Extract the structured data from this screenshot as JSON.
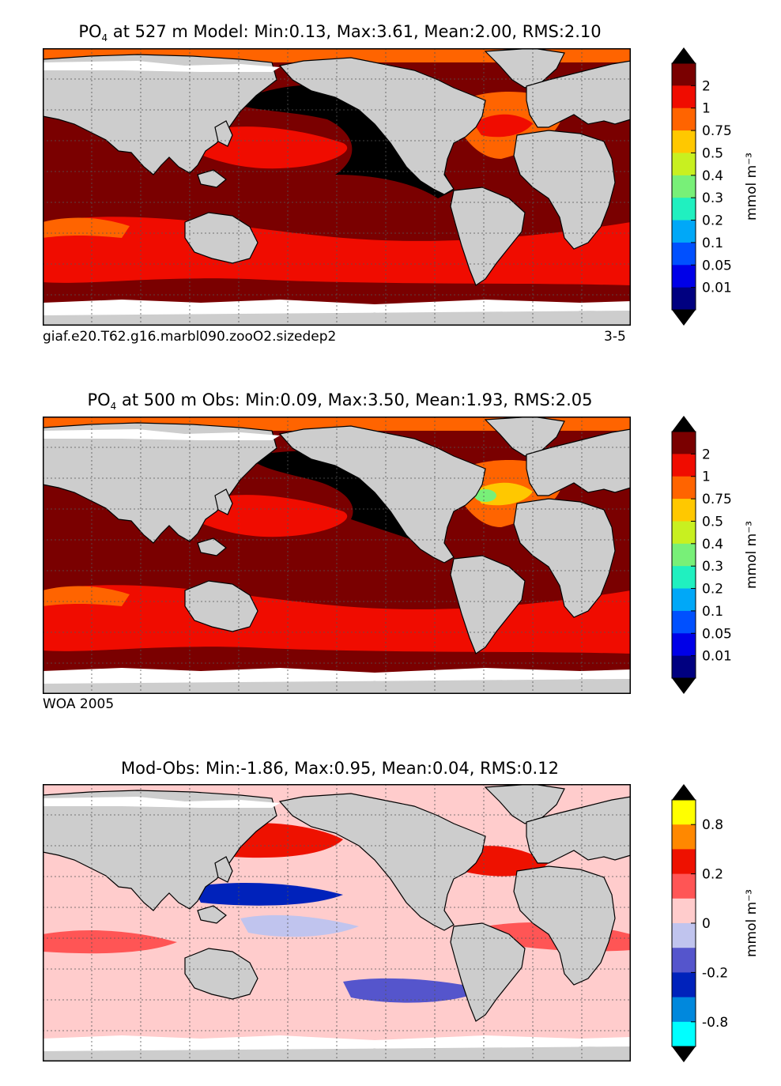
{
  "panels": [
    {
      "title_prefix": "PO",
      "title_sub": "4",
      "title_rest": " at 527 m Model: Min:0.13, Max:3.61, Mean:2.00, RMS:2.10",
      "caption_left": "giaf.e20.T62.g16.marbl090.zooO2.sizedep2",
      "caption_right": "3-5",
      "colorbar": {
        "label": "mmol m⁻³",
        "ticks": [
          "2",
          "1",
          "0.75",
          "0.5",
          "0.4",
          "0.3",
          "0.2",
          "0.1",
          "0.05",
          "0.01"
        ],
        "colors": [
          "#7a0000",
          "#f00c00",
          "#ff6400",
          "#ffc800",
          "#c8f020",
          "#78f078",
          "#20f0c0",
          "#00a8f8",
          "#0050ff",
          "#0000e8",
          "#000080"
        ],
        "over_color": "#000000",
        "under_color": "#000000"
      }
    },
    {
      "title_prefix": "PO",
      "title_sub": "4",
      "title_rest": " at 500 m Obs: Min:0.09, Max:3.50, Mean:1.93, RMS:2.05",
      "caption_left": "WOA 2005",
      "caption_right": "",
      "colorbar": {
        "label": "mmol m⁻³",
        "ticks": [
          "2",
          "1",
          "0.75",
          "0.5",
          "0.4",
          "0.3",
          "0.2",
          "0.1",
          "0.05",
          "0.01"
        ],
        "colors": [
          "#7a0000",
          "#f00c00",
          "#ff6400",
          "#ffc800",
          "#c8f020",
          "#78f078",
          "#20f0c0",
          "#00a8f8",
          "#0050ff",
          "#0000e8",
          "#000080"
        ],
        "over_color": "#000000",
        "under_color": "#000000"
      }
    },
    {
      "title_prefix": "",
      "title_sub": "",
      "title_rest": "Mod-Obs: Min:-1.86, Max:0.95, Mean:0.04, RMS:0.12",
      "caption_left": "",
      "caption_right": "",
      "colorbar": {
        "label": "mmol m⁻³",
        "ticks": [
          "0.8",
          "0.2",
          "0",
          "-0.2",
          "-0.8"
        ],
        "colors": [
          "#ffff00",
          "#ff8800",
          "#ee1100",
          "#ff5555",
          "#ffcccc",
          "#c0c4ee",
          "#5555cc",
          "#0022bb",
          "#0088dd",
          "#00ffff"
        ],
        "tick_positions": [
          1,
          3,
          5,
          7,
          9
        ],
        "over_color": "#000000",
        "under_color": "#000000"
      }
    }
  ],
  "colors": {
    "land": "#cdcdcd",
    "missing": "#ffffff",
    "grid": "#555555"
  }
}
